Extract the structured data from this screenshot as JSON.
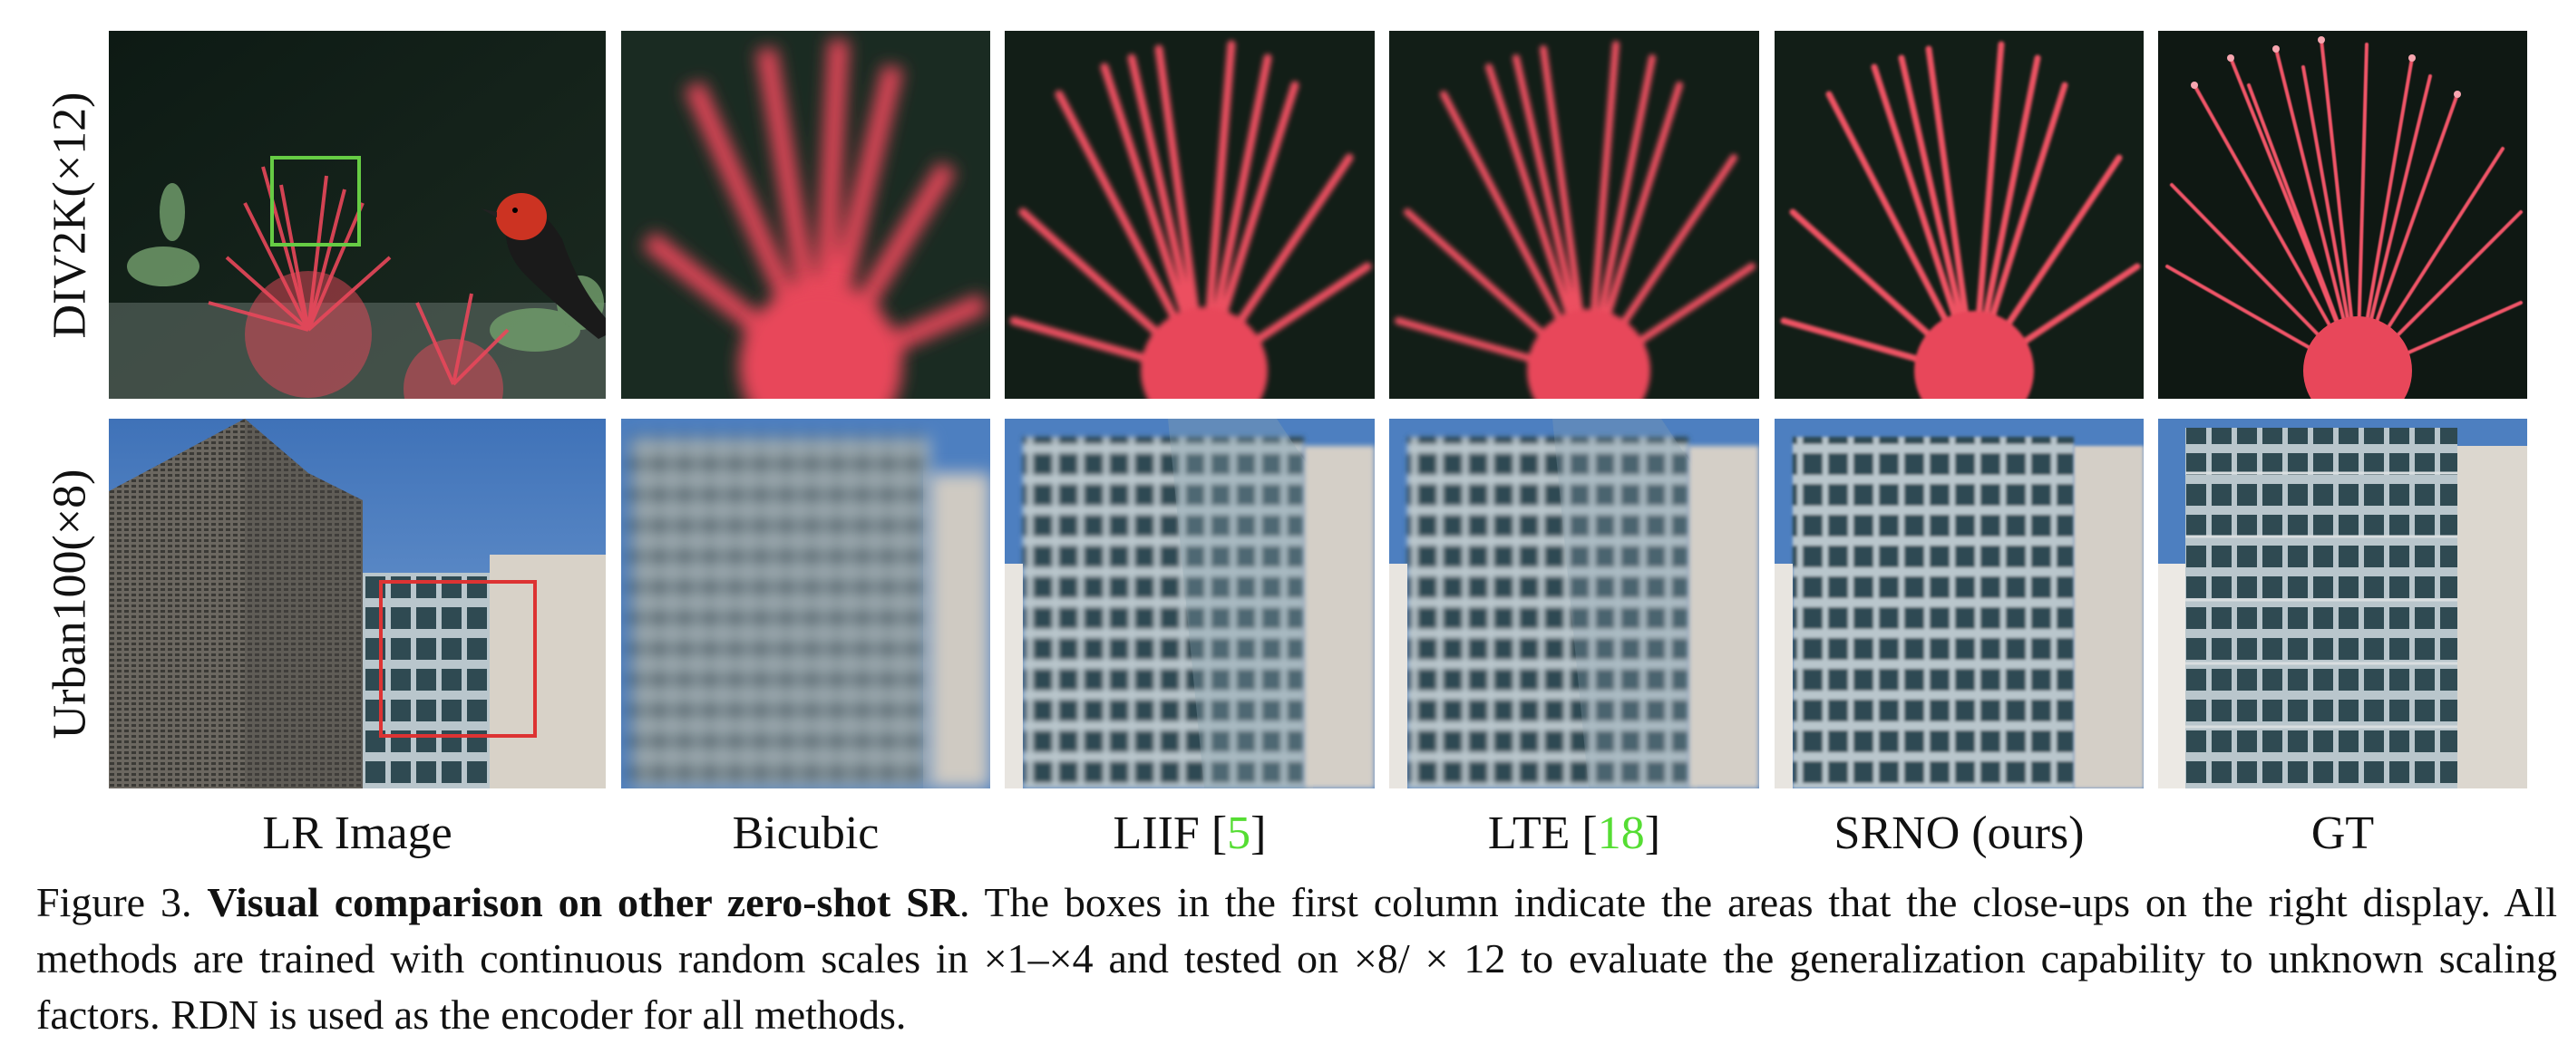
{
  "figure": {
    "rows": [
      {
        "label": "DIV2K(×12)"
      },
      {
        "label": "Urban100(×8)"
      }
    ],
    "columns": [
      {
        "label": "LR Image"
      },
      {
        "label": "Bicubic"
      },
      {
        "label": "LIIF [",
        "ref": "5",
        "suffix": "]"
      },
      {
        "label": "LTE [",
        "ref": "18",
        "suffix": "]"
      },
      {
        "label": "SRNO (ours)"
      },
      {
        "label": "GT"
      }
    ],
    "colors": {
      "green_box": "#66cc44",
      "red_box": "#dd3333",
      "citation": "#55dd33",
      "flower": "#e8475a",
      "sky": "#4d7fc0"
    }
  },
  "caption": {
    "prefix": "Figure 3.",
    "title": "Visual comparison on other zero-shot SR",
    "body": ". The boxes in the first column indicate the areas that the close-ups on the right display. All methods are trained with continuous random scales in ×1–×4 and tested on ×8/ × 12 to evaluate the generalization capability to unknown scaling factors. RDN is used as the encoder for all methods."
  }
}
